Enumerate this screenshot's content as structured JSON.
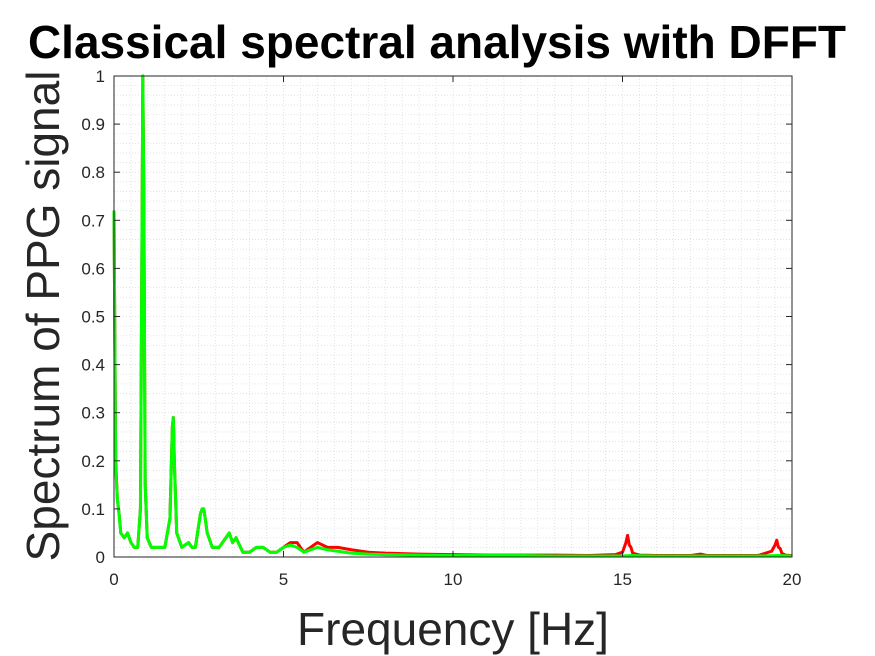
{
  "chart_data": {
    "type": "line",
    "title": "Classical spectral analysis with DFFT",
    "xlabel": "Frequency [Hz]",
    "ylabel": "Spectrum of PPG signal",
    "xlim": [
      0,
      20
    ],
    "ylim": [
      0,
      1
    ],
    "x_ticks": [
      0,
      5,
      10,
      15,
      20
    ],
    "y_ticks": [
      0,
      0.1,
      0.2,
      0.3,
      0.4,
      0.5,
      0.6,
      0.7,
      0.8,
      0.9,
      1
    ],
    "grid": "minor",
    "series": [
      {
        "color": "#ff0000",
        "x": [
          0,
          0.05,
          0.1,
          0.15,
          0.2,
          0.3,
          0.4,
          0.5,
          0.6,
          0.7,
          0.78,
          0.82,
          0.85,
          0.88,
          0.92,
          0.98,
          1.1,
          1.3,
          1.5,
          1.65,
          1.72,
          1.75,
          1.78,
          1.85,
          2.0,
          2.2,
          2.3,
          2.4,
          2.55,
          2.6,
          2.65,
          2.75,
          2.9,
          3.1,
          3.3,
          3.4,
          3.5,
          3.6,
          3.8,
          4.0,
          4.2,
          4.4,
          4.6,
          4.8,
          5.0,
          5.2,
          5.4,
          5.6,
          5.8,
          6.0,
          6.3,
          6.6,
          7.0,
          7.5,
          8.0,
          9.0,
          10.0,
          11.0,
          12.0,
          13.0,
          14.0,
          14.8,
          15.0,
          15.1,
          15.15,
          15.2,
          15.25,
          15.3,
          15.5,
          16.0,
          17.0,
          17.3,
          17.5,
          18.0,
          19.0,
          19.4,
          19.5,
          19.55,
          19.6,
          19.65,
          19.7,
          19.8,
          20.0
        ],
        "y": [
          0.72,
          0.2,
          0.12,
          0.09,
          0.05,
          0.04,
          0.05,
          0.03,
          0.02,
          0.02,
          0.1,
          0.6,
          1.0,
          0.75,
          0.15,
          0.04,
          0.02,
          0.02,
          0.02,
          0.08,
          0.27,
          0.29,
          0.2,
          0.05,
          0.02,
          0.03,
          0.02,
          0.02,
          0.09,
          0.1,
          0.1,
          0.05,
          0.02,
          0.02,
          0.04,
          0.05,
          0.03,
          0.04,
          0.01,
          0.01,
          0.02,
          0.02,
          0.01,
          0.01,
          0.02,
          0.03,
          0.03,
          0.01,
          0.02,
          0.03,
          0.02,
          0.02,
          0.015,
          0.01,
          0.008,
          0.006,
          0.005,
          0.004,
          0.004,
          0.004,
          0.003,
          0.005,
          0.01,
          0.03,
          0.045,
          0.025,
          0.02,
          0.008,
          0.004,
          0.003,
          0.003,
          0.006,
          0.003,
          0.003,
          0.003,
          0.012,
          0.025,
          0.035,
          0.02,
          0.018,
          0.008,
          0.004,
          0.003
        ]
      },
      {
        "color": "#00ff00",
        "x": [
          0,
          0.05,
          0.1,
          0.15,
          0.2,
          0.3,
          0.4,
          0.5,
          0.6,
          0.7,
          0.78,
          0.82,
          0.85,
          0.88,
          0.92,
          0.98,
          1.1,
          1.3,
          1.5,
          1.65,
          1.72,
          1.75,
          1.78,
          1.85,
          2.0,
          2.2,
          2.3,
          2.4,
          2.55,
          2.6,
          2.65,
          2.75,
          2.9,
          3.1,
          3.3,
          3.4,
          3.5,
          3.6,
          3.8,
          4.0,
          4.2,
          4.4,
          4.6,
          4.8,
          5.0,
          5.2,
          5.4,
          5.6,
          5.8,
          6.0,
          6.3,
          6.6,
          7.0,
          7.5,
          8.0,
          9.0,
          10.0,
          11.0,
          12.0,
          13.0,
          14.0,
          15.0,
          15.2,
          16.0,
          17.0,
          18.0,
          19.0,
          19.6,
          20.0
        ],
        "y": [
          0.72,
          0.19,
          0.12,
          0.09,
          0.05,
          0.04,
          0.05,
          0.03,
          0.02,
          0.02,
          0.1,
          0.6,
          1.0,
          0.75,
          0.15,
          0.04,
          0.02,
          0.02,
          0.02,
          0.08,
          0.27,
          0.29,
          0.2,
          0.05,
          0.02,
          0.03,
          0.02,
          0.02,
          0.09,
          0.1,
          0.1,
          0.05,
          0.02,
          0.02,
          0.04,
          0.05,
          0.03,
          0.04,
          0.01,
          0.01,
          0.02,
          0.02,
          0.01,
          0.01,
          0.02,
          0.025,
          0.02,
          0.01,
          0.015,
          0.02,
          0.015,
          0.012,
          0.008,
          0.006,
          0.005,
          0.004,
          0.003,
          0.003,
          0.003,
          0.002,
          0.002,
          0.002,
          0.003,
          0.002,
          0.002,
          0.002,
          0.002,
          0.003,
          0.002
        ]
      }
    ]
  }
}
